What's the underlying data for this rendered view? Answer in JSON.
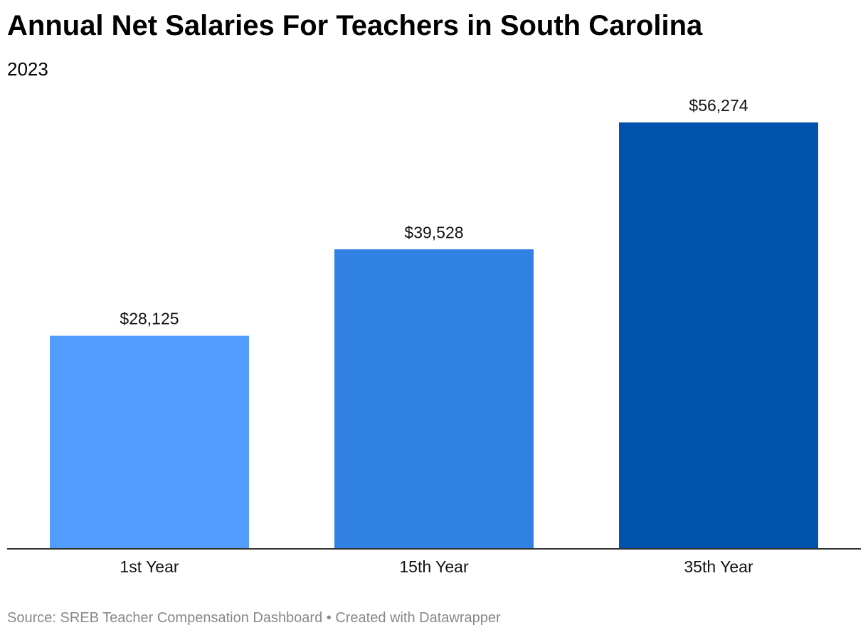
{
  "header": {
    "title": "Annual Net Salaries For Teachers in South Carolina",
    "subtitle": "2023"
  },
  "footer": {
    "source_text": "Source: SREB Teacher Compensation Dashboard • Created with Datawrapper"
  },
  "chart_data": {
    "type": "bar",
    "title": "Annual Net Salaries For Teachers in South Carolina",
    "subtitle": "2023",
    "categories": [
      "1st Year",
      "15th Year",
      "35th Year"
    ],
    "values": [
      28125,
      39528,
      56274
    ],
    "value_labels": [
      "$28,125",
      "$39,528",
      "$56,274"
    ],
    "colors": [
      "#529cfd",
      "#3081e2",
      "#0052ad"
    ],
    "ylim": [
      0,
      56274
    ],
    "grid": false,
    "legend": "none"
  }
}
